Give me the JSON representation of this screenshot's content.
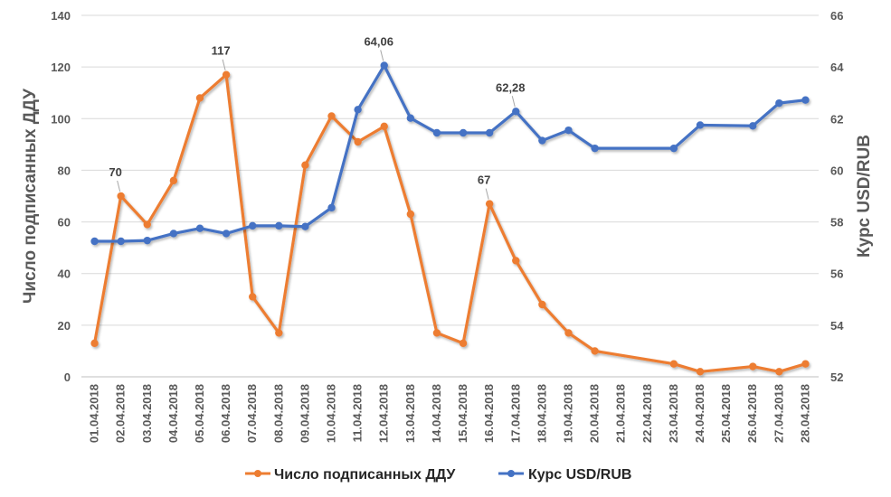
{
  "chart_data": {
    "type": "line",
    "categories": [
      "01.04.2018",
      "02.04.2018",
      "03.04.2018",
      "04.04.2018",
      "05.04.2018",
      "06.04.2018",
      "07.04.2018",
      "08.04.2018",
      "09.04.2018",
      "10.04.2018",
      "11.04.2018",
      "12.04.2018",
      "13.04.2018",
      "14.04.2018",
      "15.04.2018",
      "16.04.2018",
      "17.04.2018",
      "18.04.2018",
      "19.04.2018",
      "20.04.2018",
      "21.04.2018",
      "22.04.2018",
      "23.04.2018",
      "24.04.2018",
      "25.04.2018",
      "26.04.2018",
      "27.04.2018",
      "28.04.2018"
    ],
    "ylabel": "Число подписанных ДДУ",
    "y2label": "Курс USD/RUB",
    "ylim": [
      0,
      140
    ],
    "y2lim": [
      52,
      66
    ],
    "yticks": [
      "0",
      "20",
      "40",
      "60",
      "80",
      "100",
      "120",
      "140"
    ],
    "y2ticks": [
      "52",
      "54",
      "56",
      "58",
      "60",
      "62",
      "64",
      "66"
    ],
    "legend_position": "bottom",
    "grid": true,
    "series": [
      {
        "name": "Число подписанных ДДУ",
        "axis": "left",
        "color": "#ED7D31",
        "values": [
          13,
          70,
          59,
          76,
          108,
          117,
          31,
          17,
          82,
          101,
          91,
          97,
          63,
          17,
          13,
          67,
          45,
          28,
          17,
          10,
          null,
          null,
          5,
          2,
          null,
          4,
          2,
          5
        ]
      },
      {
        "name": "Курс USD/RUB",
        "axis": "right",
        "color": "#4472C4",
        "values": [
          57.25,
          57.25,
          57.28,
          57.55,
          57.75,
          57.55,
          57.85,
          57.85,
          57.82,
          58.55,
          62.35,
          64.06,
          62.02,
          61.45,
          61.45,
          61.45,
          62.28,
          61.15,
          61.55,
          60.85,
          null,
          null,
          60.85,
          61.75,
          null,
          61.72,
          62.6,
          62.72
        ]
      }
    ],
    "annotations": [
      {
        "series": 0,
        "index": 1,
        "text": "70"
      },
      {
        "series": 0,
        "index": 5,
        "text": "117"
      },
      {
        "series": 0,
        "index": 15,
        "text": "67"
      },
      {
        "series": 1,
        "index": 11,
        "text": "64,06"
      },
      {
        "series": 1,
        "index": 16,
        "text": "62,28"
      }
    ]
  }
}
